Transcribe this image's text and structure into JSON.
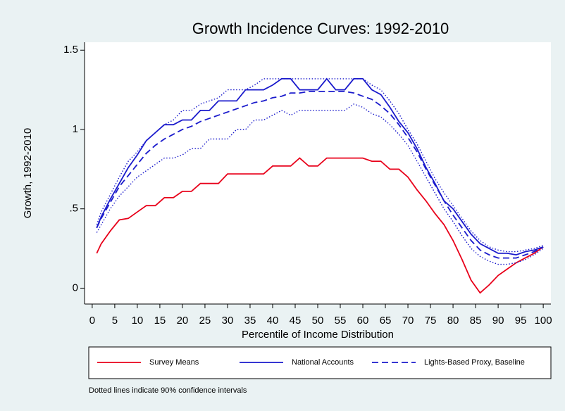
{
  "chart_data": {
    "type": "line",
    "title": "Growth Incidence Curves: 1992-2010",
    "xlabel": "Percentile of Income Distribution",
    "ylabel": "Growth, 1992-2010",
    "note": "Dotted lines indicate 90% confidence intervals",
    "x": [
      1,
      2,
      4,
      6,
      8,
      10,
      12,
      14,
      16,
      18,
      20,
      22,
      24,
      26,
      28,
      30,
      32,
      34,
      36,
      38,
      40,
      42,
      44,
      46,
      48,
      50,
      52,
      54,
      56,
      58,
      60,
      62,
      64,
      66,
      68,
      70,
      72,
      74,
      76,
      78,
      80,
      82,
      84,
      86,
      88,
      90,
      92,
      94,
      96,
      98,
      100
    ],
    "xlim": [
      -1.7,
      101.7
    ],
    "ylim": [
      -0.1,
      1.55
    ],
    "xticks": [
      0,
      5,
      10,
      15,
      20,
      25,
      30,
      35,
      40,
      45,
      50,
      55,
      60,
      65,
      70,
      75,
      80,
      85,
      90,
      95,
      100
    ],
    "yticks": [
      0,
      {
        "value": 0.5,
        "label": ".5"
      },
      1,
      1.5
    ],
    "series": [
      {
        "name": "Survey Means",
        "color": "#e8001a",
        "style": "solid",
        "values": [
          0.22,
          0.28,
          0.36,
          0.43,
          0.44,
          0.48,
          0.52,
          0.52,
          0.57,
          0.57,
          0.61,
          0.61,
          0.66,
          0.66,
          0.66,
          0.72,
          0.72,
          0.72,
          0.72,
          0.72,
          0.77,
          0.77,
          0.77,
          0.82,
          0.77,
          0.77,
          0.82,
          0.82,
          0.82,
          0.82,
          0.82,
          0.8,
          0.8,
          0.75,
          0.75,
          0.7,
          0.62,
          0.55,
          0.47,
          0.4,
          0.3,
          0.18,
          0.05,
          -0.03,
          0.02,
          0.08,
          0.12,
          0.16,
          0.19,
          0.22,
          0.26
        ]
      },
      {
        "name": "National Accounts",
        "color": "#1a1acc",
        "style": "solid",
        "values": [
          0.38,
          0.45,
          0.56,
          0.66,
          0.76,
          0.84,
          0.93,
          0.98,
          1.03,
          1.03,
          1.06,
          1.06,
          1.12,
          1.12,
          1.18,
          1.18,
          1.18,
          1.25,
          1.25,
          1.25,
          1.28,
          1.32,
          1.32,
          1.25,
          1.25,
          1.25,
          1.32,
          1.25,
          1.25,
          1.32,
          1.32,
          1.25,
          1.22,
          1.14,
          1.05,
          0.98,
          0.88,
          0.76,
          0.66,
          0.55,
          0.5,
          0.42,
          0.34,
          0.28,
          0.25,
          0.22,
          0.22,
          0.21,
          0.23,
          0.24,
          0.26
        ]
      },
      {
        "name": "Lights-Based Proxy, Baseline",
        "color": "#1a1acc",
        "style": "dash",
        "values": [
          0.38,
          0.44,
          0.54,
          0.64,
          0.71,
          0.78,
          0.85,
          0.9,
          0.94,
          0.97,
          1.0,
          1.02,
          1.05,
          1.07,
          1.09,
          1.11,
          1.13,
          1.15,
          1.17,
          1.18,
          1.2,
          1.21,
          1.23,
          1.23,
          1.24,
          1.24,
          1.24,
          1.24,
          1.24,
          1.23,
          1.21,
          1.19,
          1.15,
          1.1,
          1.03,
          0.95,
          0.86,
          0.75,
          0.65,
          0.55,
          0.46,
          0.38,
          0.3,
          0.24,
          0.21,
          0.19,
          0.19,
          0.19,
          0.21,
          0.23,
          0.26
        ]
      },
      {
        "color": "#1a1acc",
        "style": "dot",
        "values": [
          0.4,
          0.48,
          0.59,
          0.7,
          0.8,
          0.86,
          0.93,
          0.98,
          1.03,
          1.06,
          1.12,
          1.12,
          1.16,
          1.18,
          1.2,
          1.25,
          1.25,
          1.25,
          1.28,
          1.32,
          1.32,
          1.32,
          1.32,
          1.32,
          1.32,
          1.32,
          1.32,
          1.32,
          1.32,
          1.32,
          1.32,
          1.28,
          1.25,
          1.18,
          1.1,
          1.0,
          0.91,
          0.8,
          0.69,
          0.6,
          0.52,
          0.44,
          0.36,
          0.3,
          0.26,
          0.24,
          0.23,
          0.23,
          0.24,
          0.25,
          0.27
        ]
      },
      {
        "color": "#1a1acc",
        "style": "dot",
        "values": [
          0.35,
          0.4,
          0.5,
          0.58,
          0.64,
          0.7,
          0.74,
          0.78,
          0.82,
          0.82,
          0.84,
          0.88,
          0.88,
          0.94,
          0.94,
          0.94,
          1.0,
          1.0,
          1.06,
          1.06,
          1.09,
          1.12,
          1.09,
          1.12,
          1.12,
          1.12,
          1.12,
          1.12,
          1.12,
          1.16,
          1.14,
          1.1,
          1.08,
          1.03,
          0.97,
          0.9,
          0.8,
          0.7,
          0.6,
          0.5,
          0.42,
          0.33,
          0.25,
          0.2,
          0.17,
          0.15,
          0.15,
          0.16,
          0.18,
          0.21,
          0.25
        ]
      }
    ]
  }
}
